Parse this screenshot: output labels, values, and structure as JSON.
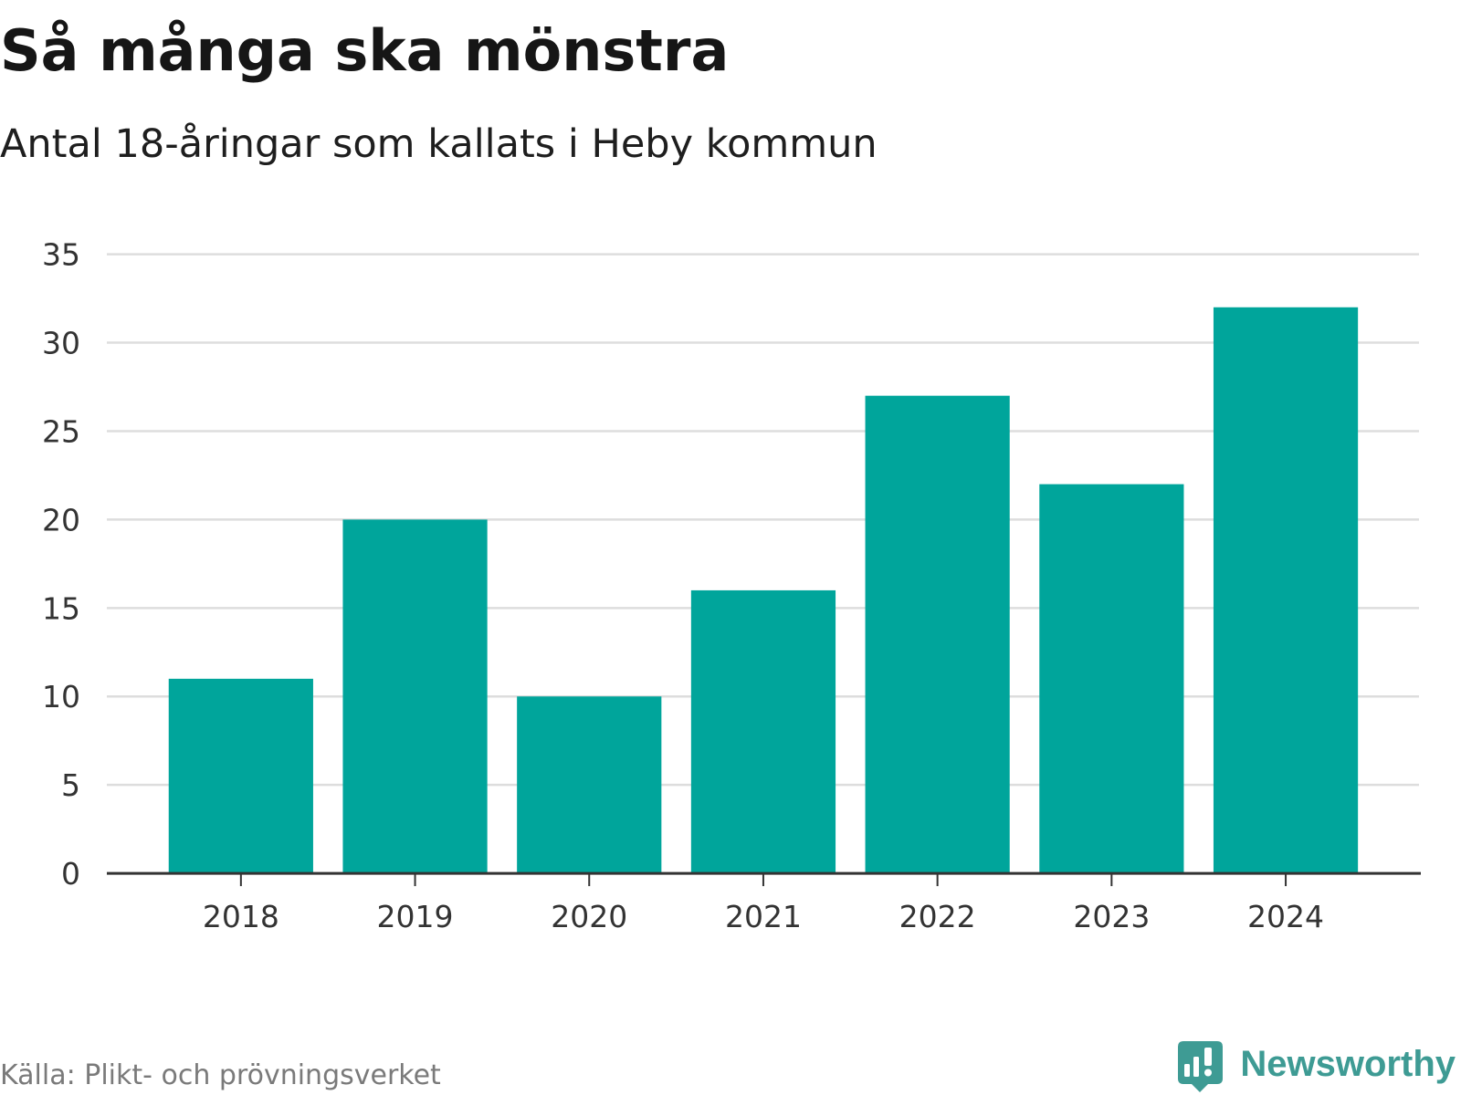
{
  "chart_data": {
    "type": "bar",
    "title": "Så många ska mönstra",
    "subtitle": "Antal 18-åringar som kallats i Heby kommun",
    "categories": [
      "2018",
      "2019",
      "2020",
      "2021",
      "2022",
      "2023",
      "2024"
    ],
    "values": [
      11,
      20,
      10,
      16,
      27,
      22,
      32
    ],
    "ylim": [
      0,
      35
    ],
    "yticks": [
      0,
      5,
      10,
      15,
      20,
      25,
      30,
      35
    ],
    "grid": true,
    "source": "Källa: Plikt- och prövningsverket"
  },
  "brand": {
    "name": "Newsworthy",
    "icon": "newsworthy-logo-icon"
  },
  "colors": {
    "bar": "#00a59b",
    "brand": "#3e9b94",
    "grid": "#dddddd",
    "axis": "#333333",
    "icon_glyph": "#ffffff"
  }
}
